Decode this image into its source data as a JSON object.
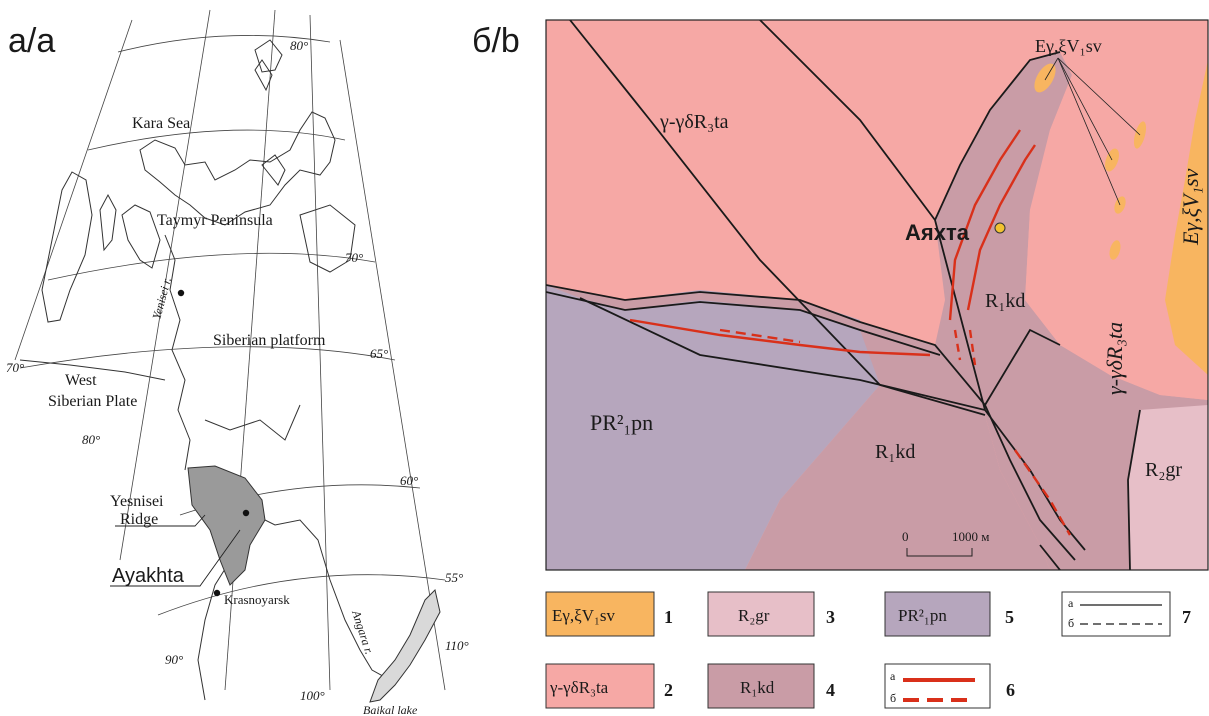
{
  "panel_a": {
    "label": "а/a",
    "lat_labels": [
      "80°",
      "70°",
      "65°",
      "60°",
      "55°"
    ],
    "lon_labels": [
      "70°",
      "80°",
      "90°",
      "100°",
      "110°"
    ],
    "places": {
      "kara_sea": "Kara Sea",
      "taymyr": "Taymyr Peninsula",
      "siberian_platform": "Siberian platform",
      "west_siberian_1": "West",
      "west_siberian_2": "Siberian Plate",
      "yenisei_river": "Yenisei r.",
      "angara_river": "Angara r.",
      "baikal": "Baikal lake",
      "ridge_1": "Yesnisei",
      "ridge_2": "Ridge",
      "ayakhta": "Ayakhta",
      "krasnoyarsk": "Krasnoyarsk"
    },
    "colors": {
      "ridge_fill": "#9a9a9a",
      "baikal_fill": "#d9d9d9"
    }
  },
  "panel_b": {
    "label": "б/b",
    "locality": "Аяхта",
    "scale": {
      "zero": "0",
      "distance": "1000 м"
    },
    "unit_labels": {
      "ta_upper": "γ-γδR₃ta",
      "ta_right": "γ-γδR₃ta",
      "kd_north": "R₁kd",
      "kd_south": "R₁kd",
      "pn": "PR²₁pn",
      "gr": "R₂gr",
      "sv_right": "Eγ,ξV₁sv",
      "sv_top": "Eγ,ξV₁sv"
    },
    "colors": {
      "ta": "#f6a8a5",
      "sv": "#f8b560",
      "kd": "#c99ca6",
      "pn": "#b6a6bd",
      "gr": "#e7bfc8",
      "vein": "#d9301a"
    }
  },
  "legend": [
    {
      "number": "1",
      "label": "Eγ,ξV₁sv",
      "color": "#f8b560"
    },
    {
      "number": "2",
      "label": "γ-γδR₃ta",
      "color": "#f6a8a5"
    },
    {
      "number": "3",
      "label": "R₂gr",
      "color": "#e7bfc8"
    },
    {
      "number": "4",
      "label": "R₁kd",
      "color": "#c99ca6"
    },
    {
      "number": "5",
      "label": "PR²₁pn",
      "color": "#b6a6bd"
    },
    {
      "number": "6",
      "sub_a": "а",
      "sub_b": "б",
      "color": "#d9301a"
    },
    {
      "number": "7",
      "sub_a": "а",
      "sub_b": "б",
      "color": "#1a1a1a"
    }
  ]
}
